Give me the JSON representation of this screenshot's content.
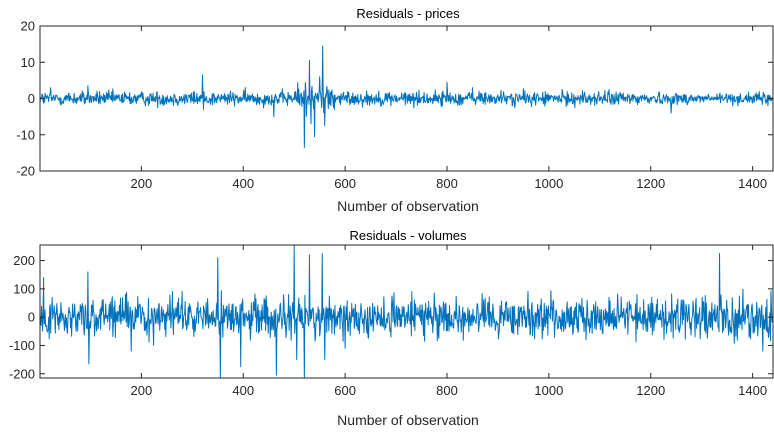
{
  "chart_data": [
    {
      "id": "prices",
      "type": "line",
      "title": "Residuals - prices",
      "xlabel": "Number of observation",
      "ylabel": "",
      "xlim": [
        1,
        1440
      ],
      "ylim": [
        -20,
        20
      ],
      "xticks": [
        200,
        400,
        600,
        800,
        1000,
        1200,
        1400
      ],
      "yticks": [
        -20,
        -10,
        0,
        10,
        20
      ],
      "grid": false,
      "color": "#0072BD",
      "series": [
        {
          "n": 1440,
          "baseline_amplitude": 1.0,
          "note_points": [
            {
              "x": 22,
              "y": 3
            },
            {
              "x": 95,
              "y": 3.5
            },
            {
              "x": 320,
              "y": 6.5
            },
            {
              "x": 322,
              "y": -3
            },
            {
              "x": 460,
              "y": -5
            },
            {
              "x": 520,
              "y": -13.5
            },
            {
              "x": 530,
              "y": 10.5
            },
            {
              "x": 533,
              "y": -7
            },
            {
              "x": 540,
              "y": -10.5
            },
            {
              "x": 550,
              "y": 6
            },
            {
              "x": 556,
              "y": 14.5
            },
            {
              "x": 560,
              "y": -7.5
            },
            {
              "x": 800,
              "y": 4.5
            },
            {
              "x": 850,
              "y": 3
            },
            {
              "x": 1240,
              "y": -4
            },
            {
              "x": 1430,
              "y": -2
            }
          ]
        }
      ]
    },
    {
      "id": "volumes",
      "type": "line",
      "title": "Residuals - volumes",
      "xlabel": "Number of observation",
      "ylabel": "",
      "xlim": [
        1,
        1440
      ],
      "ylim": [
        -215,
        255
      ],
      "xticks": [
        200,
        400,
        600,
        800,
        1000,
        1200,
        1400
      ],
      "yticks": [
        -200,
        -100,
        0,
        100,
        200
      ],
      "grid": false,
      "color": "#0072BD",
      "series": [
        {
          "n": 1440,
          "baseline_amplitude": 35,
          "note_points": [
            {
              "x": 8,
              "y": 140
            },
            {
              "x": 95,
              "y": 160
            },
            {
              "x": 97,
              "y": -165
            },
            {
              "x": 180,
              "y": -120
            },
            {
              "x": 350,
              "y": 210
            },
            {
              "x": 355,
              "y": -215
            },
            {
              "x": 395,
              "y": -175
            },
            {
              "x": 465,
              "y": -205
            },
            {
              "x": 500,
              "y": 255
            },
            {
              "x": 505,
              "y": -150
            },
            {
              "x": 520,
              "y": -215
            },
            {
              "x": 530,
              "y": 220
            },
            {
              "x": 555,
              "y": 225
            },
            {
              "x": 560,
              "y": -150
            },
            {
              "x": 600,
              "y": -110
            },
            {
              "x": 1335,
              "y": 225
            },
            {
              "x": 1420,
              "y": -120
            }
          ]
        }
      ]
    }
  ]
}
